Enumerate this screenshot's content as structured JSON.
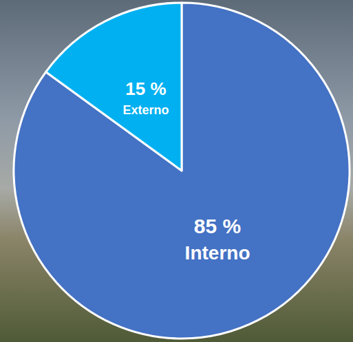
{
  "chart_data": {
    "type": "pie",
    "categories": [
      "Interno",
      "Externo"
    ],
    "values": [
      85,
      15
    ],
    "value_labels": [
      "85 %",
      "15 %"
    ],
    "colors": [
      "#4472c4",
      "#00b0f0"
    ],
    "data_labels": true
  }
}
